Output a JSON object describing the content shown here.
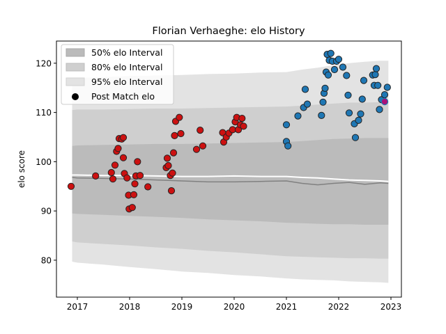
{
  "chart_data": {
    "type": "scatter",
    "title": "Florian Verhaeghe: elo History",
    "xlabel": "",
    "ylabel": "elo score",
    "xlim": [
      2016.6,
      2023.2
    ],
    "ylim": [
      72.5,
      124.5
    ],
    "x_ticks": [
      2017,
      2018,
      2019,
      2020,
      2021,
      2022,
      2023
    ],
    "y_ticks": [
      80,
      90,
      100,
      110,
      120
    ],
    "grid": false,
    "legend": {
      "placement": "top-left",
      "entries": [
        "50% elo Interval",
        "80% elo Interval",
        "95% elo Interval",
        "Post Match elo"
      ]
    },
    "colors": {
      "band95": "#e3e3e3",
      "band80": "#cfcfcf",
      "band50": "#bbbbbb",
      "mean_line": "#808080",
      "median_line": "#ffffff",
      "early_points": "#cc1111",
      "recent_points": "#1f77b4",
      "last_point": "#aa1177",
      "point_edge": "#222222"
    },
    "band_x": [
      2016.9,
      2017.0,
      2017.5,
      2018.0,
      2018.5,
      2019.0,
      2019.5,
      2020.0,
      2020.5,
      2021.0,
      2021.3,
      2021.6,
      2021.9,
      2022.2,
      2022.5,
      2022.8,
      2022.95
    ],
    "band95_upper": [
      116.8,
      117.0,
      117.2,
      117.4,
      117.5,
      117.6,
      117.8,
      117.9,
      118.1,
      118.2,
      118.7,
      119.1,
      119.6,
      120.0,
      120.3,
      120.5,
      120.5
    ],
    "band95_lower": [
      79.7,
      79.5,
      79.1,
      78.6,
      78.2,
      77.7,
      77.4,
      77.0,
      76.7,
      76.3,
      76.1,
      76.0,
      75.9,
      75.7,
      75.6,
      75.5,
      75.4
    ],
    "band80_upper": [
      110.5,
      110.6,
      110.6,
      110.7,
      110.8,
      110.8,
      110.9,
      111.0,
      111.1,
      111.2,
      111.4,
      111.6,
      111.8,
      112.0,
      112.0,
      112.1,
      112.1
    ],
    "band80_lower": [
      83.8,
      83.6,
      83.3,
      83.0,
      82.6,
      82.3,
      81.9,
      81.6,
      81.2,
      80.8,
      80.7,
      80.6,
      80.5,
      80.4,
      80.4,
      80.3,
      80.3
    ],
    "band50_upper": [
      103.2,
      103.3,
      103.4,
      103.5,
      103.6,
      103.6,
      103.7,
      103.8,
      103.9,
      104.0,
      104.2,
      104.4,
      104.6,
      104.7,
      104.8,
      104.8,
      104.8
    ],
    "band50_lower": [
      89.5,
      89.4,
      89.2,
      89.0,
      88.8,
      88.6,
      88.3,
      88.1,
      87.9,
      87.6,
      87.5,
      87.4,
      87.3,
      87.3,
      87.2,
      87.2,
      87.2
    ],
    "mean_line": [
      96.8,
      96.7,
      96.6,
      96.5,
      96.3,
      96.1,
      95.9,
      95.9,
      96.0,
      96.1,
      95.6,
      95.3,
      95.6,
      95.8,
      95.4,
      95.7,
      95.6
    ],
    "median_line": [
      97.3,
      97.3,
      97.2,
      97.2,
      97.1,
      97.0,
      97.0,
      97.1,
      97.0,
      97.0,
      96.8,
      96.7,
      96.5,
      96.3,
      96.2,
      96.1,
      96.0
    ],
    "points_red": [
      [
        2016.88,
        95.0
      ],
      [
        2017.35,
        97.1
      ],
      [
        2017.65,
        97.8
      ],
      [
        2017.68,
        96.5
      ],
      [
        2017.72,
        99.3
      ],
      [
        2017.75,
        102.1
      ],
      [
        2017.78,
        102.7
      ],
      [
        2017.8,
        104.7
      ],
      [
        2017.85,
        104.6
      ],
      [
        2017.88,
        104.9
      ],
      [
        2017.88,
        100.8
      ],
      [
        2017.9,
        97.6
      ],
      [
        2017.95,
        96.7
      ],
      [
        2017.98,
        93.2
      ],
      [
        2017.99,
        90.4
      ],
      [
        2018.05,
        90.7
      ],
      [
        2018.08,
        93.3
      ],
      [
        2018.1,
        95.5
      ],
      [
        2018.12,
        97.1
      ],
      [
        2018.15,
        100.0
      ],
      [
        2018.2,
        97.2
      ],
      [
        2018.35,
        94.9
      ],
      [
        2018.7,
        98.8
      ],
      [
        2018.72,
        100.7
      ],
      [
        2018.74,
        99.2
      ],
      [
        2018.78,
        97.2
      ],
      [
        2018.8,
        94.1
      ],
      [
        2018.82,
        97.7
      ],
      [
        2018.84,
        101.8
      ],
      [
        2018.86,
        105.3
      ],
      [
        2018.88,
        108.2
      ],
      [
        2018.95,
        109.0
      ],
      [
        2018.98,
        105.7
      ],
      [
        2019.28,
        102.5
      ],
      [
        2019.35,
        106.4
      ],
      [
        2019.4,
        103.2
      ],
      [
        2019.78,
        105.9
      ],
      [
        2019.8,
        104.0
      ],
      [
        2019.85,
        105.0
      ],
      [
        2019.9,
        105.8
      ],
      [
        2019.97,
        106.5
      ],
      [
        2020.02,
        108.1
      ],
      [
        2020.05,
        109.0
      ],
      [
        2020.08,
        106.5
      ],
      [
        2020.12,
        107.5
      ],
      [
        2020.15,
        108.8
      ],
      [
        2020.18,
        107.2
      ]
    ],
    "points_blue": [
      [
        2021.0,
        107.5
      ],
      [
        2021.0,
        104.1
      ],
      [
        2021.03,
        103.2
      ],
      [
        2021.22,
        109.3
      ],
      [
        2021.33,
        111.0
      ],
      [
        2021.36,
        114.7
      ],
      [
        2021.4,
        111.7
      ],
      [
        2021.67,
        109.4
      ],
      [
        2021.7,
        112.1
      ],
      [
        2021.72,
        113.9
      ],
      [
        2021.74,
        114.9
      ],
      [
        2021.76,
        118.2
      ],
      [
        2021.78,
        121.8
      ],
      [
        2021.8,
        117.6
      ],
      [
        2021.82,
        120.6
      ],
      [
        2021.85,
        122.0
      ],
      [
        2021.88,
        120.4
      ],
      [
        2021.92,
        118.7
      ],
      [
        2021.96,
        120.4
      ],
      [
        2022.0,
        120.8
      ],
      [
        2022.08,
        119.2
      ],
      [
        2022.15,
        117.5
      ],
      [
        2022.18,
        113.5
      ],
      [
        2022.2,
        109.9
      ],
      [
        2022.3,
        107.7
      ],
      [
        2022.32,
        104.9
      ],
      [
        2022.38,
        108.4
      ],
      [
        2022.42,
        109.7
      ],
      [
        2022.45,
        112.7
      ],
      [
        2022.48,
        116.5
      ],
      [
        2022.65,
        117.6
      ],
      [
        2022.68,
        115.5
      ],
      [
        2022.7,
        117.7
      ],
      [
        2022.72,
        118.9
      ],
      [
        2022.75,
        115.5
      ],
      [
        2022.78,
        110.6
      ],
      [
        2022.82,
        112.6
      ],
      [
        2022.88,
        113.6
      ],
      [
        2022.93,
        115.1
      ]
    ],
    "point_last": [
      2022.88,
      112.2
    ]
  }
}
